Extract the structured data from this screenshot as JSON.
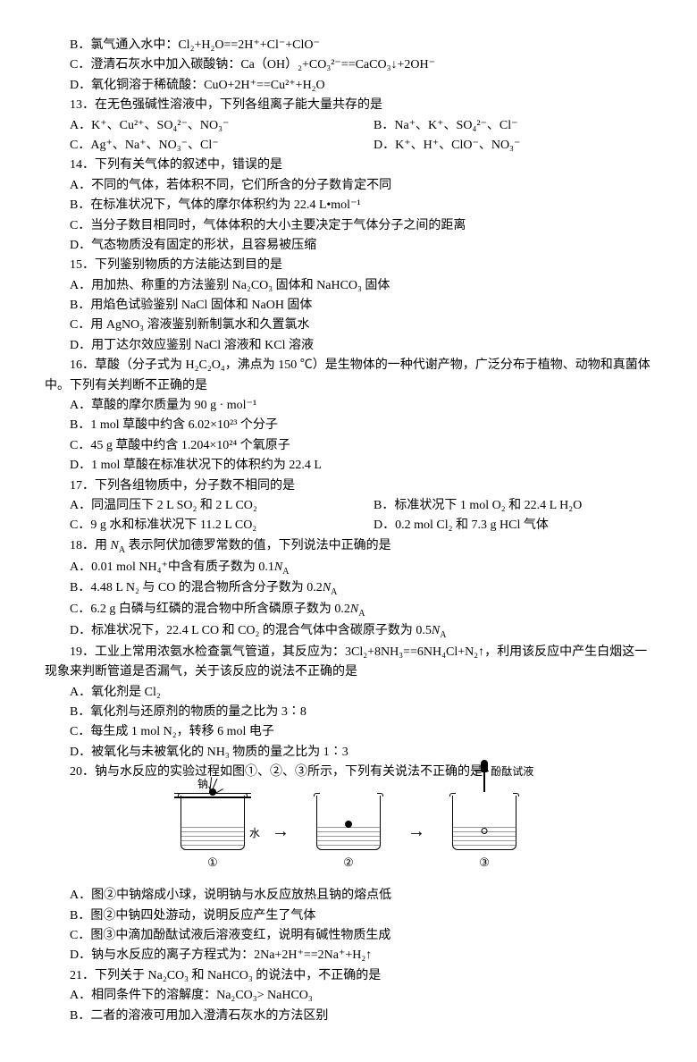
{
  "opt_b": "B．氯气通入水中：Cl₂+H₂O==2H⁺+Cl⁻+ClO⁻",
  "opt_c": "C．澄清石灰水中加入碳酸钠：Ca（OH）₂+CO₃²⁻==CaCO₃↓+2OH⁻",
  "opt_d": "D．氧化铜溶于稀硫酸：CuO+2H⁺==Cu²⁺+H₂O",
  "q13": "13．在无色强碱性溶液中，下列各组离子能大量共存的是",
  "q13a": "A．K⁺、Cu²⁺、SO₄²⁻、NO₃⁻",
  "q13b": "B．Na⁺、K⁺、SO₄²⁻、Cl⁻",
  "q13c": "C．Ag⁺、Na⁺、NO₃⁻、Cl⁻",
  "q13d": "D．K⁺、H⁺、ClO⁻、NO₃⁻",
  "q14": "14．下列有关气体的叙述中，错误的是",
  "q14a": "A．不同的气体，若体积不同，它们所含的分子数肯定不同",
  "q14b": "B．在标准状况下，气体的摩尔体积约为 22.4 L•mol⁻¹",
  "q14c": "C．当分子数目相同时，气体体积的大小主要决定于气体分子之间的距离",
  "q14d": "D．气态物质没有固定的形状，且容易被压缩",
  "q15": "15．下列鉴别物质的方法能达到目的是",
  "q15a": "A．用加热、称重的方法鉴别 Na₂CO₃ 固体和 NaHCO₃ 固体",
  "q15b": "B．用焰色试验鉴别 NaCl 固体和 NaOH 固体",
  "q15c": "C．用 AgNO₃ 溶液鉴别新制氯水和久置氯水",
  "q15d": "D．用丁达尔效应鉴别 NaCl 溶液和 KCl 溶液",
  "q16": "16．草酸（分子式为 H₂C₂O₄，沸点为 150 ℃）是生物体的一种代谢产物，广泛分布于植物、动物和真菌体中。下列有关判断不正确的是",
  "q16a": "A．草酸的摩尔质量为  90 g · mol⁻¹",
  "q16b": "B．1 mol 草酸中约含  6.02×10²³ 个分子",
  "q16c": "C．45 g 草酸中约含  1.204×10²⁴ 个氧原子",
  "q16d": "D．1 mol 草酸在标准状况下的体积约为  22.4 L",
  "q17": "17．下列各组物质中，分子数不相同的是",
  "q17a": "A．同温同压下 2 L SO₂ 和 2 L CO₂",
  "q17b": "B．标准状况下 1 mol O₂ 和 22.4 L H₂O",
  "q17c": "C．9 g 水和标准状况下 11.2 L CO₂",
  "q17d": "D．0.2 mol Cl₂ 和 7.3 g HCl 气体",
  "q18_pre": "18．用 ",
  "q18_na": "N",
  "q18_post": " 表示阿伏加德罗常数的值，下列说法中正确的是",
  "q18a_pre": "A．0.01 mol NH₄⁺中含有质子数为 0.1",
  "q18b_pre": "B．4.48 L N₂ 与 CO 的混合物所含分子数为 0.2",
  "q18c_pre": "C．6.2 g 白磷与红磷的混合物中所含磷原子数为 0.2",
  "q18d_pre": "D．标准状况下，22.4 L CO 和 CO₂ 的混合气体中含碳原子数为 0.5",
  "q19": "19．工业上常用浓氨水检查氯气管道，其反应为：3Cl₂+8NH₃==6NH₄Cl+N₂↑，利用该反应中产生白烟这一现象来判断管道是否漏气，关于该反应的说法不正确的是",
  "q19a": "A．氧化剂是 Cl₂",
  "q19b": "B．氧化剂与还原剂的物质的量之比为 3∶8",
  "q19c": "C．每生成 1 mol N₂，转移 6 mol 电子",
  "q19d": "D．被氧化与未被氧化的 NH₃ 物质的量之比为 1∶3",
  "q20": "20．钠与水反应的实验过程如图①、②、③所示，下列有关说法不正确的是",
  "label_na": "钠",
  "label_water": "水",
  "label_dropper": "酚酞试液",
  "fig1": "①",
  "fig2": "②",
  "fig3": "③",
  "q20a": "A．图②中钠熔成小球，说明钠与水反应放热且钠的熔点低",
  "q20b": "B．图②中钠四处游动，说明反应产生了气体",
  "q20c": "C．图③中滴加酚酞试液后溶液变红，说明有碱性物质生成",
  "q20d": "D．钠与水反应的离子方程式为：2Na+2H⁺==2Na⁺+H₂↑",
  "q21": "21．下列关于 Na₂CO₃ 和 NaHCO₃ 的说法中，不正确的是",
  "q21a": "A．相同条件下的溶解度：Na₂CO₃> NaHCO₃",
  "q21b": "B．二者的溶液可用加入澄清石灰水的方法区别"
}
